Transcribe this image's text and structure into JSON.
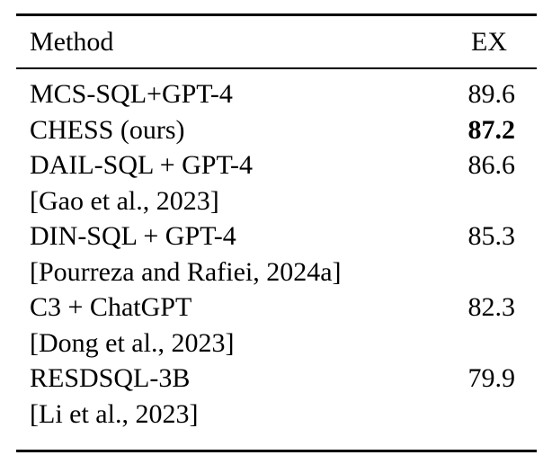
{
  "table": {
    "header": {
      "method": "Method",
      "ex": "EX"
    },
    "rows": [
      {
        "method": "MCS-SQL+GPT-4",
        "ex": "89.6",
        "bold": false,
        "citation": ""
      },
      {
        "method": "CHESS (ours)",
        "ex": "87.2",
        "bold": true,
        "citation": ""
      },
      {
        "method": "DAIL-SQL + GPT-4",
        "ex": "86.6",
        "bold": false,
        "citation": "[Gao et al., 2023]"
      },
      {
        "method": "DIN-SQL + GPT-4",
        "ex": "85.3",
        "bold": false,
        "citation": "[Pourreza and Rafiei, 2024a]"
      },
      {
        "method": "C3 + ChatGPT",
        "ex": "82.3",
        "bold": false,
        "citation": "[Dong et al., 2023]"
      },
      {
        "method": "RESDSQL-3B",
        "ex": "79.9",
        "bold": false,
        "citation": "[Li et al., 2023]"
      }
    ],
    "colors": {
      "text": "#000000",
      "background": "#ffffff",
      "rule": "#000000"
    }
  }
}
